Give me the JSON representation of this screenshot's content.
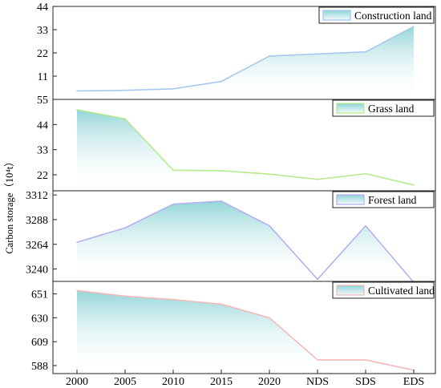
{
  "chart_data": {
    "type": "area",
    "ylabel": "Carbon storage（10⁴t）",
    "categories": [
      "2000",
      "2005",
      "2010",
      "2015",
      "2020",
      "NDS",
      "SDS",
      "EDS"
    ],
    "fill_color": "#8fd3d6",
    "panels": [
      {
        "name": "Construction land",
        "color": "#a9c8ee",
        "ylim": [
          0,
          44
        ],
        "yticks": [
          "11",
          "22",
          "33",
          "44"
        ],
        "values": [
          4,
          4.3,
          5,
          8.5,
          20.5,
          21.5,
          22.5,
          34.5
        ]
      },
      {
        "name": "Grass land",
        "color": "#b7ea8c",
        "ylim": [
          15,
          55
        ],
        "yticks": [
          "22",
          "33",
          "44",
          "55"
        ],
        "values": [
          50.5,
          46.5,
          24,
          23.8,
          22.3,
          20,
          22.5,
          17.5
        ]
      },
      {
        "name": "Forest land",
        "color": "#b7b0ee",
        "ylim": [
          3228,
          3316
        ],
        "yticks": [
          "3240",
          "3264",
          "3288",
          "3312"
        ],
        "values": [
          3266,
          3280,
          3303,
          3306,
          3282,
          3230,
          3282,
          3227
        ]
      },
      {
        "name": "Cultivated land",
        "color": "#f5b9b9",
        "ylim": [
          581,
          662
        ],
        "yticks": [
          "588",
          "609",
          "630",
          "651"
        ],
        "values": [
          654,
          649,
          646,
          642,
          630,
          593,
          593,
          584
        ]
      }
    ]
  }
}
